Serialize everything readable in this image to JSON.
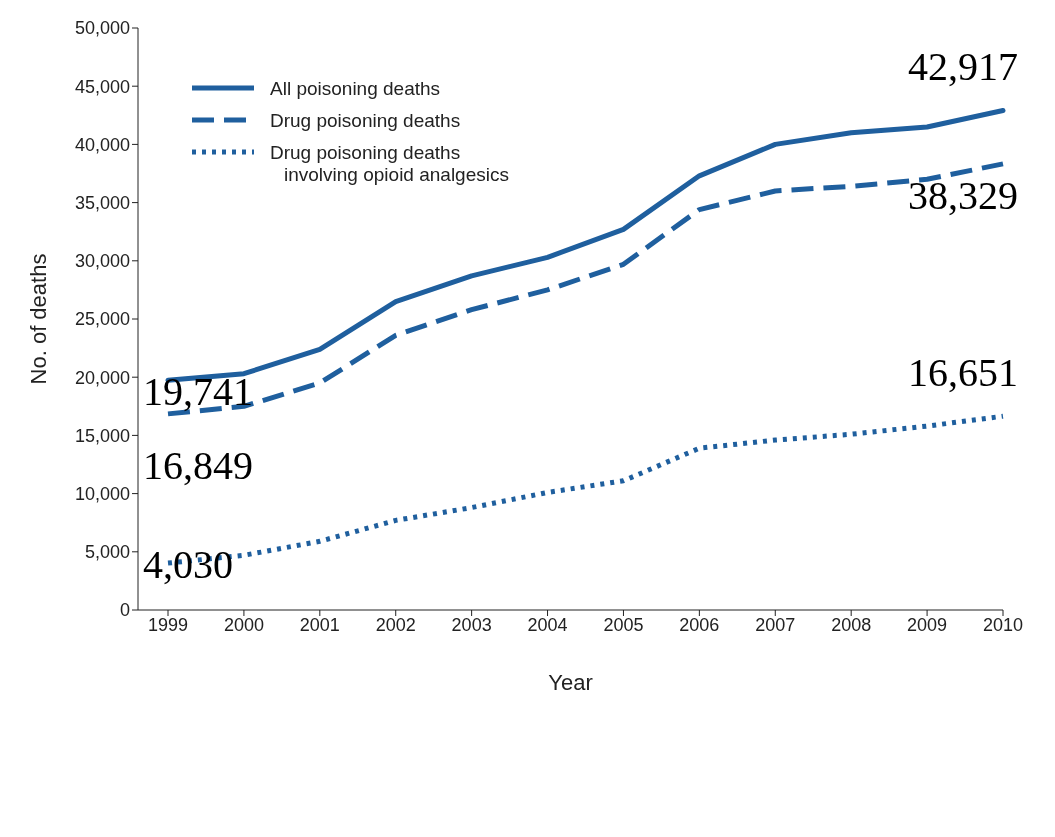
{
  "chart_data": {
    "type": "line",
    "xlabel": "Year",
    "ylabel": "No. of deaths",
    "categories": [
      "1999",
      "2000",
      "2001",
      "2002",
      "2003",
      "2004",
      "2005",
      "2006",
      "2007",
      "2008",
      "2009",
      "2010"
    ],
    "series": [
      {
        "name": "All poisoning deaths",
        "color": "#1f5f9e",
        "line_style": "solid",
        "values": [
          19741,
          20300,
          22400,
          26500,
          28700,
          30300,
          32700,
          37300,
          40000,
          41000,
          41500,
          42917
        ]
      },
      {
        "name": "Drug poisoning deaths",
        "color": "#1f5f9e",
        "line_style": "dashed",
        "values": [
          16849,
          17500,
          19500,
          23600,
          25800,
          27500,
          29700,
          34400,
          36000,
          36400,
          37000,
          38329
        ]
      },
      {
        "name": "Drug poisoning deaths\ninvolving opioid analgesics",
        "color": "#1f5f9e",
        "line_style": "dotted",
        "values": [
          4030,
          4700,
          5900,
          7700,
          8800,
          10100,
          11100,
          13900,
          14600,
          15100,
          15800,
          16651
        ]
      }
    ],
    "ylim": [
      0,
      50000
    ],
    "yticks": [
      0,
      {
        "value": 5000,
        "label": "5,000"
      },
      {
        "value": 10000,
        "label": "10,000"
      },
      {
        "value": 15000,
        "label": "15,000"
      },
      {
        "value": 20000,
        "label": "20,000"
      },
      {
        "value": 25000,
        "label": "25,000"
      },
      {
        "value": 30000,
        "label": "30,000"
      },
      {
        "value": 35000,
        "label": "35,000"
      },
      {
        "value": 40000,
        "label": "40,000"
      },
      {
        "value": 45000,
        "label": "45,000"
      },
      {
        "value": 50000,
        "label": "50,000"
      }
    ],
    "legend": "top left",
    "marker": "none",
    "annotations": [
      {
        "text": "42,917",
        "x": "2010",
        "y": 42917
      },
      {
        "text": "38,329",
        "x": "2010",
        "y": 38329
      },
      {
        "text": "19,741",
        "x": "1999",
        "y": 19741
      },
      {
        "text": "16,849",
        "x": "1999",
        "y": 16849
      },
      {
        "text": "16,651",
        "x": "2010",
        "y": 16651
      },
      {
        "text": "4,030",
        "x": "1999",
        "y": 4030
      }
    ]
  }
}
